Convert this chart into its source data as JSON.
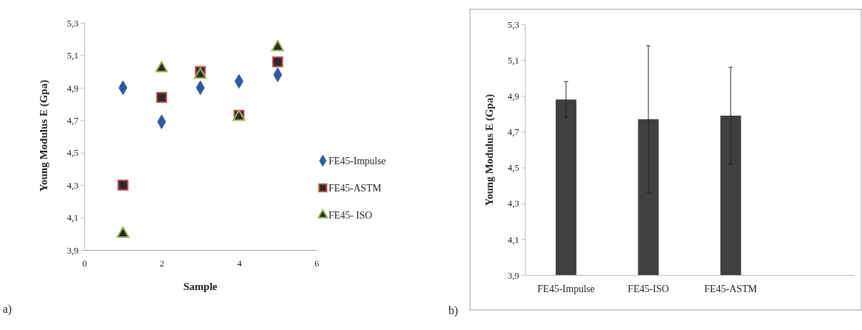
{
  "chart_data": [
    {
      "type": "scatter",
      "xlabel": "Sample",
      "ylabel": "Young Modulus E (Gpa)",
      "x": [
        1,
        2,
        3,
        4,
        5
      ],
      "series": [
        {
          "name": "FE45-Impulse",
          "color": "#2f5a9e",
          "marker": "diamond",
          "values": [
            4.9,
            4.69,
            4.9,
            4.94,
            4.98
          ]
        },
        {
          "name": "FE45-ASTM",
          "color": "#c0504d",
          "marker": "square",
          "values": [
            4.3,
            4.84,
            5.0,
            4.73,
            5.06
          ]
        },
        {
          "name": "FE45- ISO",
          "color": "#9bbb59",
          "marker": "triangle",
          "values": [
            4.0,
            5.02,
            4.98,
            4.72,
            5.15
          ]
        }
      ],
      "xlim": [
        0,
        6
      ],
      "xticks": [
        0,
        2,
        4,
        6
      ],
      "ylim": [
        3.9,
        5.3
      ],
      "yticks": [
        {
          "value": 3.9,
          "label": "3,9"
        },
        {
          "value": 4.1,
          "label": "4,1"
        },
        {
          "value": 4.3,
          "label": "4,3"
        },
        {
          "value": 4.5,
          "label": "4,5"
        },
        {
          "value": 4.7,
          "label": "4,7"
        },
        {
          "value": 4.9,
          "label": "4,9"
        },
        {
          "value": 5.1,
          "label": "5,1"
        },
        {
          "value": 5.3,
          "label": "5,3"
        }
      ],
      "grid": false,
      "legend": "right",
      "annotations": [
        "a)"
      ]
    },
    {
      "type": "bar",
      "ylabel": "Young Modulus E (Gpa)",
      "categories": [
        "FE45-Impulse",
        "FE45-ISO",
        "FE45-ASTM",
        null
      ],
      "values": [
        4.88,
        4.77,
        4.79,
        null
      ],
      "color": "#404040",
      "errors": [
        [
          4.78,
          4.98
        ],
        [
          4.36,
          5.18
        ],
        [
          4.52,
          5.06
        ],
        null
      ],
      "ylim": [
        3.9,
        5.3
      ],
      "yticks": [
        {
          "value": 3.9,
          "label": "3,9"
        },
        {
          "value": 4.1,
          "label": "4,1"
        },
        {
          "value": 4.3,
          "label": "4,3"
        },
        {
          "value": 4.5,
          "label": "4,5"
        },
        {
          "value": 4.7,
          "label": "4,7"
        },
        {
          "value": 4.9,
          "label": "4,9"
        },
        {
          "value": 5.1,
          "label": "5,1"
        },
        {
          "value": 5.3,
          "label": "5,3"
        }
      ],
      "grid": false,
      "annotations": [
        "b)"
      ]
    }
  ]
}
